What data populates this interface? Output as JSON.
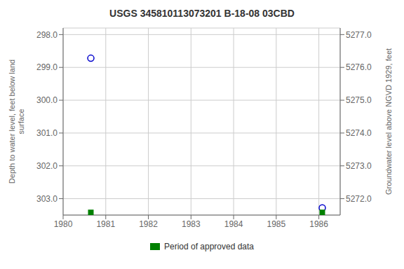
{
  "chart_data": {
    "type": "scatter",
    "title": "USGS 345810113073201 B-18-08 03CBD",
    "y_label": "Depth to water level, feet below land\n surface",
    "y2_label": "Groundwater level above NGVD 1929, feet",
    "xlim": [
      1980,
      1986.5
    ],
    "xticks": [
      1980,
      1981,
      1982,
      1983,
      1984,
      1985,
      1986
    ],
    "ylim": [
      303.5,
      297.8
    ],
    "yticks": [
      {
        "value": 298.0,
        "label": "298.0"
      },
      {
        "value": 299.0,
        "label": "299.0"
      },
      {
        "value": 300.0,
        "label": "300.0"
      },
      {
        "value": 301.0,
        "label": "301.0"
      },
      {
        "value": 302.0,
        "label": "302.0"
      },
      {
        "value": 303.0,
        "label": "303.0"
      }
    ],
    "y2lim": [
      5271.5,
      5277.2
    ],
    "y2ticks": [
      {
        "value": 5277.0,
        "label": "5277.0"
      },
      {
        "value": 5276.0,
        "label": "5276.0"
      },
      {
        "value": 5275.0,
        "label": "5275.0"
      },
      {
        "value": 5274.0,
        "label": "5274.0"
      },
      {
        "value": 5273.0,
        "label": "5273.0"
      },
      {
        "value": 5272.0,
        "label": "5272.0"
      }
    ],
    "grid": true,
    "legend": "bottom",
    "series": [
      {
        "color": "#0000cc",
        "marker": "circle",
        "x": [
          1980.65,
          1986.08
        ],
        "values": [
          298.72,
          303.28
        ]
      },
      {
        "name": "Period of approved data",
        "color": "#008000",
        "marker": "square",
        "x": [
          1980.65,
          1986.08
        ],
        "values": [
          303.42,
          303.42
        ]
      }
    ]
  }
}
